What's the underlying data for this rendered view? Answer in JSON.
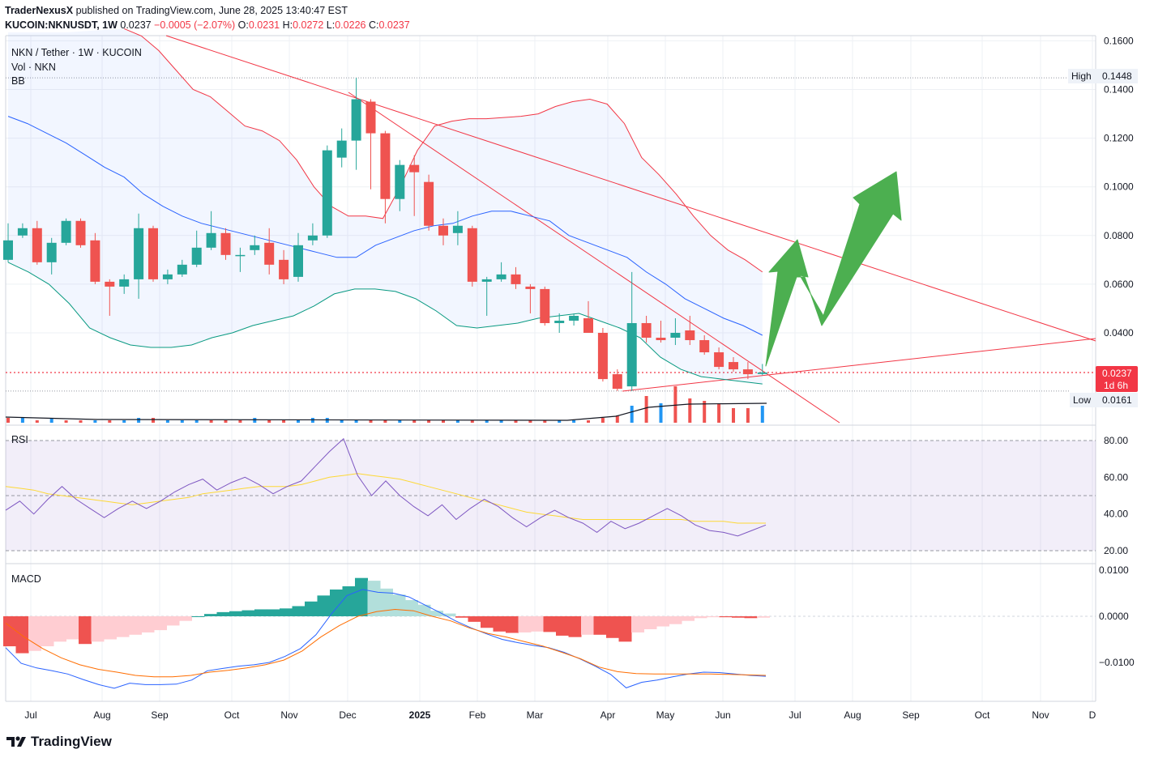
{
  "header": {
    "publisher": "TraderNexusX",
    "published_text": "published on TradingView.com, June 28, 2025 13:40:47 EST",
    "symbol": "KUCOIN:NKNUSDT, 1W",
    "last": "0.0237",
    "change": "−0.0005 (−2.07%)",
    "open_label": "O:",
    "open": "0.0231",
    "high_label": "H:",
    "high": "0.0272",
    "low_label": "L:",
    "low": "0.0226",
    "close_label": "C:",
    "close": "0.0237"
  },
  "legend": {
    "title": "NKN / Tether · 1W · KUCOIN",
    "volume": "Vol · NKN",
    "bb": "BB",
    "rsi": "RSI",
    "macd": "MACD"
  },
  "markers": {
    "high_label": "High",
    "high_value": "0.1448",
    "low_label": "Low",
    "low_value": "0.0161",
    "price_value": "0.0237",
    "countdown": "1d 6h"
  },
  "footer": {
    "brand": "TradingView"
  },
  "colors": {
    "up": "#26a69a",
    "down": "#ef5350",
    "bb_upper": "#f23645",
    "bb_basis": "#2962ff",
    "bb_lower": "#089981",
    "rsi": "#7e57c2",
    "rsi_ma": "#fdd835",
    "macd": "#2962ff",
    "signal": "#ff6d00",
    "arrow": "#4caf50"
  },
  "chart_data": [
    {
      "type": "candlestick",
      "title": "NKN / Tether · 1W · KUCOIN",
      "y_ticks": [
        "0.1600",
        "0.1400",
        "0.1200",
        "0.1000",
        "0.0800",
        "0.0600",
        "0.0400"
      ],
      "ylim": [
        0.016,
        0.16
      ],
      "x_labels": [
        "Jul",
        "Aug",
        "Sep",
        "Oct",
        "Nov",
        "Dec",
        "2025",
        "Feb",
        "Mar",
        "Apr",
        "May",
        "Jun",
        "Jul",
        "Aug",
        "Sep",
        "Oct",
        "Nov",
        "D"
      ],
      "candles": [
        [
          0.07,
          0.078,
          0.085,
          0.069
        ],
        [
          0.08,
          0.083,
          0.085,
          0.079
        ],
        [
          0.083,
          0.069,
          0.086,
          0.068
        ],
        [
          0.069,
          0.077,
          0.079,
          0.064
        ],
        [
          0.077,
          0.086,
          0.087,
          0.076
        ],
        [
          0.086,
          0.076,
          0.087,
          0.075
        ],
        [
          0.078,
          0.061,
          0.081,
          0.06
        ],
        [
          0.061,
          0.059,
          0.062,
          0.047
        ],
        [
          0.059,
          0.062,
          0.064,
          0.056
        ],
        [
          0.062,
          0.083,
          0.089,
          0.054
        ],
        [
          0.083,
          0.062,
          0.084,
          0.061
        ],
        [
          0.062,
          0.064,
          0.066,
          0.06
        ],
        [
          0.064,
          0.068,
          0.07,
          0.063
        ],
        [
          0.068,
          0.075,
          0.082,
          0.067
        ],
        [
          0.075,
          0.081,
          0.09,
          0.074
        ],
        [
          0.081,
          0.072,
          0.083,
          0.07
        ],
        [
          0.072,
          0.072,
          0.075,
          0.065
        ],
        [
          0.074,
          0.076,
          0.08,
          0.072
        ],
        [
          0.077,
          0.068,
          0.083,
          0.064
        ],
        [
          0.07,
          0.062,
          0.074,
          0.06
        ],
        [
          0.063,
          0.076,
          0.081,
          0.061
        ],
        [
          0.078,
          0.08,
          0.085,
          0.076
        ],
        [
          0.08,
          0.115,
          0.117,
          0.079
        ],
        [
          0.112,
          0.119,
          0.124,
          0.108
        ],
        [
          0.119,
          0.136,
          0.1448,
          0.107
        ],
        [
          0.135,
          0.122,
          0.136,
          0.099
        ],
        [
          0.122,
          0.095,
          0.123,
          0.085
        ],
        [
          0.095,
          0.109,
          0.111,
          0.09
        ],
        [
          0.109,
          0.106,
          0.113,
          0.088
        ],
        [
          0.102,
          0.084,
          0.105,
          0.082
        ],
        [
          0.084,
          0.08,
          0.087,
          0.076
        ],
        [
          0.081,
          0.084,
          0.09,
          0.076
        ],
        [
          0.083,
          0.061,
          0.084,
          0.059
        ],
        [
          0.061,
          0.062,
          0.063,
          0.047
        ],
        [
          0.062,
          0.064,
          0.069,
          0.061
        ],
        [
          0.064,
          0.06,
          0.067,
          0.058
        ],
        [
          0.059,
          0.058,
          0.06,
          0.048
        ],
        [
          0.058,
          0.044,
          0.059,
          0.043
        ],
        [
          0.044,
          0.045,
          0.048,
          0.04
        ],
        [
          0.045,
          0.047,
          0.048,
          0.043
        ],
        [
          0.046,
          0.04,
          0.053,
          0.04
        ],
        [
          0.04,
          0.021,
          0.042,
          0.02
        ],
        [
          0.023,
          0.017,
          0.025,
          0.0161
        ],
        [
          0.018,
          0.044,
          0.065,
          0.0161
        ],
        [
          0.044,
          0.038,
          0.047,
          0.036
        ],
        [
          0.038,
          0.037,
          0.045,
          0.036
        ],
        [
          0.038,
          0.04,
          0.046,
          0.035
        ],
        [
          0.041,
          0.037,
          0.047,
          0.035
        ],
        [
          0.037,
          0.032,
          0.039,
          0.031
        ],
        [
          0.032,
          0.026,
          0.034,
          0.025
        ],
        [
          0.028,
          0.025,
          0.03,
          0.024
        ],
        [
          0.025,
          0.023,
          0.028,
          0.021
        ],
        [
          0.0231,
          0.0237,
          0.0272,
          0.0226
        ]
      ],
      "bb_upper": [
        0.165,
        0.162,
        0.156,
        0.148,
        0.14,
        0.137,
        0.131,
        0.125,
        0.123,
        0.119,
        0.111,
        0.1,
        0.092,
        0.088,
        0.088,
        0.087,
        0.1,
        0.115,
        0.125,
        0.127,
        0.128,
        0.128,
        0.1285,
        0.129,
        0.13,
        0.133,
        0.135,
        0.136,
        0.134,
        0.126,
        0.112,
        0.105,
        0.097,
        0.088,
        0.08,
        0.074,
        0.07,
        0.065
      ],
      "bb_basis": [
        0.129,
        0.126,
        0.122,
        0.118,
        0.113,
        0.108,
        0.104,
        0.097,
        0.092,
        0.088,
        0.085,
        0.083,
        0.081,
        0.079,
        0.077,
        0.075,
        0.073,
        0.071,
        0.071,
        0.076,
        0.079,
        0.082,
        0.084,
        0.085,
        0.088,
        0.09,
        0.09,
        0.088,
        0.086,
        0.08,
        0.077,
        0.074,
        0.071,
        0.065,
        0.06,
        0.054,
        0.05,
        0.046,
        0.043,
        0.039
      ],
      "bb_lower": [
        0.069,
        0.065,
        0.06,
        0.052,
        0.042,
        0.038,
        0.035,
        0.034,
        0.034,
        0.035,
        0.038,
        0.04,
        0.043,
        0.045,
        0.047,
        0.051,
        0.056,
        0.058,
        0.058,
        0.057,
        0.054,
        0.049,
        0.043,
        0.042,
        0.043,
        0.044,
        0.046,
        0.047,
        0.048,
        0.045,
        0.042,
        0.038,
        0.03,
        0.025,
        0.022,
        0.021,
        0.02,
        0.019
      ]
    },
    {
      "type": "bar",
      "title": "Vol · NKN",
      "values_rel": [
        0.1,
        0.1,
        0.05,
        0.1,
        0.05,
        0.05,
        0.05,
        0.05,
        0.05,
        0.1,
        0.1,
        0.05,
        0.05,
        0.05,
        0.05,
        0.05,
        0.05,
        0.1,
        0.05,
        0.05,
        0.05,
        0.1,
        0.1,
        0.05,
        0.05,
        0.05,
        0.05,
        0.05,
        0.05,
        0.05,
        0.05,
        0.05,
        0.05,
        0.05,
        0.05,
        0.05,
        0.05,
        0.05,
        0.05,
        0.05,
        0.05,
        0.1,
        0.15,
        0.35,
        0.55,
        0.4,
        0.75,
        0.5,
        0.45,
        0.4,
        0.3,
        0.3,
        0.35
      ],
      "up": [
        false,
        true,
        false,
        true,
        false,
        false,
        true,
        false,
        true,
        true,
        false,
        true,
        true,
        true,
        false,
        false,
        false,
        true,
        false,
        false,
        true,
        true,
        true,
        true,
        true,
        false,
        false,
        true,
        false,
        false,
        false,
        true,
        false,
        true,
        true,
        false,
        false,
        false,
        true,
        true,
        false,
        false,
        false,
        true,
        false,
        true,
        false,
        false,
        false,
        false,
        false,
        false,
        true
      ]
    },
    {
      "type": "line",
      "title": "RSI",
      "y_ticks": [
        "80.00",
        "60.00",
        "40.00",
        "20.00"
      ],
      "ylim": [
        20,
        80
      ],
      "series": [
        {
          "values": [
            42,
            47,
            40,
            48,
            55,
            48,
            43,
            38,
            43,
            47,
            43,
            47,
            52,
            56,
            59,
            53,
            57,
            60,
            56,
            51,
            55,
            58,
            66,
            74,
            81,
            61,
            50,
            58,
            50,
            44,
            39,
            45,
            37,
            43,
            48,
            44,
            38,
            33,
            38,
            42,
            38,
            35,
            30,
            36,
            32,
            35,
            39,
            43,
            39,
            34,
            31,
            30,
            28,
            31,
            34
          ]
        },
        {
          "values": [
            55,
            54,
            53,
            51,
            50,
            49,
            48,
            47,
            46,
            45,
            46,
            47,
            48,
            49,
            51,
            52,
            53,
            54,
            55,
            55,
            55,
            56,
            58,
            60,
            61,
            62,
            61,
            60,
            59,
            57,
            55,
            53,
            51,
            49,
            47,
            45,
            43,
            41,
            40,
            39,
            38,
            37,
            37,
            37,
            37,
            37,
            37,
            37,
            37,
            36,
            36,
            36,
            35,
            35,
            35
          ]
        }
      ]
    },
    {
      "type": "bar",
      "title": "MACD",
      "y_ticks": [
        "0.0100",
        "0.0000",
        "−0.0100"
      ],
      "ylim": [
        -0.016,
        0.0105
      ],
      "histogram": [
        -0.0065,
        -0.008,
        -0.0075,
        -0.0065,
        -0.0055,
        -0.005,
        -0.006,
        -0.0055,
        -0.005,
        -0.0045,
        -0.004,
        -0.0035,
        -0.003,
        -0.002,
        -0.001,
        0,
        0.0005,
        0.0009,
        0.0011,
        0.0013,
        0.0015,
        0.0015,
        0.0017,
        0.0022,
        0.0032,
        0.0045,
        0.0058,
        0.0065,
        0.0083,
        0.0077,
        0.006,
        0.0047,
        0.0035,
        0.0025,
        0.0012,
        0.0006,
        -0.0003,
        -0.0012,
        -0.0025,
        -0.0033,
        -0.0036,
        -0.0035,
        -0.0033,
        -0.0034,
        -0.0042,
        -0.0045,
        -0.004,
        -0.004,
        -0.0047,
        -0.0055,
        -0.0035,
        -0.0028,
        -0.0022,
        -0.0017,
        -0.001,
        -0.0004,
        -0.0002,
        -0.0002,
        -0.0003,
        -0.0004,
        -0.0003
      ],
      "series": [
        {
          "name": "MACD",
          "values": [
            -0.0068,
            -0.0102,
            -0.0112,
            -0.0118,
            -0.0125,
            -0.0137,
            -0.0148,
            -0.0156,
            -0.0145,
            -0.0148,
            -0.0148,
            -0.0147,
            -0.0138,
            -0.0118,
            -0.0113,
            -0.0108,
            -0.0105,
            -0.01,
            -0.0087,
            -0.007,
            -0.004,
            0.0005,
            0.0045,
            0.0058,
            0.0052,
            0.005,
            0.0042,
            0.0025,
            0.0008,
            -0.001,
            -0.0025,
            -0.0038,
            -0.005,
            -0.0057,
            -0.0063,
            -0.0068,
            -0.0078,
            -0.0092,
            -0.0108,
            -0.0126,
            -0.0155,
            -0.0143,
            -0.0138,
            -0.0131,
            -0.0125,
            -0.0121,
            -0.0122,
            -0.0125,
            -0.0128,
            -0.013
          ]
        },
        {
          "name": "Signal",
          "values": [
            -0.0015,
            -0.0045,
            -0.007,
            -0.009,
            -0.0105,
            -0.0115,
            -0.0121,
            -0.0128,
            -0.0131,
            -0.0131,
            -0.0128,
            -0.0121,
            -0.0117,
            -0.0112,
            -0.0105,
            -0.0095,
            -0.0075,
            -0.0045,
            -0.002,
            0.0,
            0.001,
            0.0015,
            0.0012,
            0.0,
            -0.001,
            -0.0025,
            -0.0037,
            -0.0045,
            -0.0055,
            -0.0065,
            -0.0078,
            -0.0092,
            -0.011,
            -0.012,
            -0.0124,
            -0.0125,
            -0.0125,
            -0.0125,
            -0.0125,
            -0.0126,
            -0.0127,
            -0.0128
          ]
        }
      ]
    }
  ]
}
